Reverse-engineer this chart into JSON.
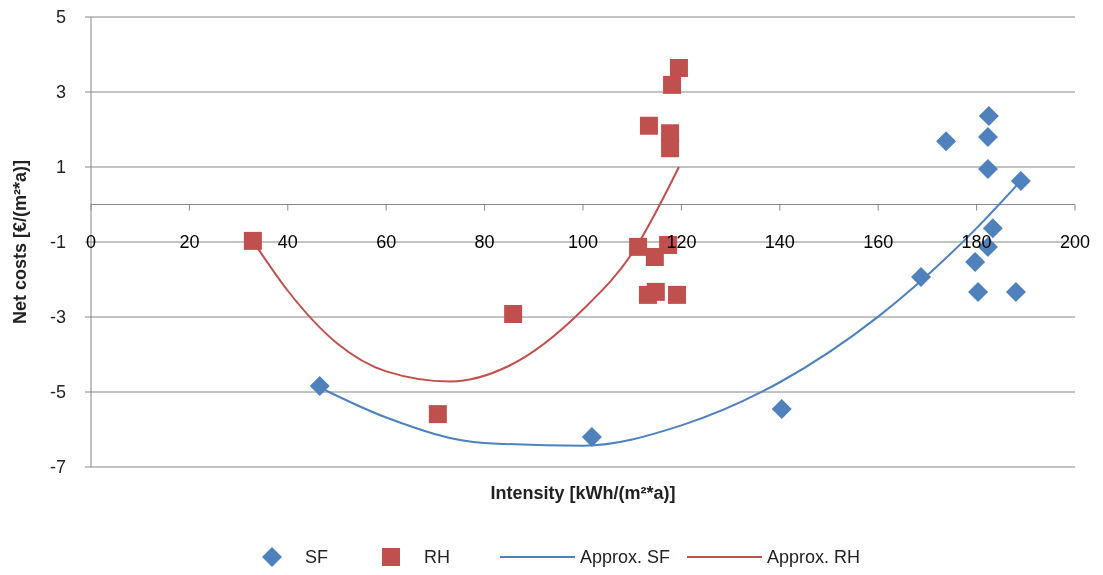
{
  "chart_data": {
    "type": "scatter",
    "xlabel": "Intensity [kWh/(m²*a)]",
    "ylabel": "Net costs [€/(m²*a)]",
    "xlim": [
      0,
      200
    ],
    "xticks": [
      0,
      20,
      40,
      60,
      80,
      100,
      120,
      140,
      160,
      180,
      200
    ],
    "ylim": [
      -7,
      5
    ],
    "yticks": [
      -7,
      -5,
      -3,
      -1,
      1,
      3,
      5
    ],
    "grid": "y",
    "legend": "bottom",
    "series": [
      {
        "name": "SF",
        "marker": "diamond",
        "color": "#4f81bd",
        "x": [
          46.5,
          101.8,
          140.4,
          168.7,
          173.8,
          182.5,
          182.3,
          182.3,
          183.3,
          182.3,
          179.7,
          180.3,
          188,
          189
        ],
        "values": [
          -4.84,
          -6.2,
          -5.45,
          -1.93,
          1.69,
          2.36,
          1.8,
          0.95,
          -0.63,
          -1.13,
          -1.53,
          -2.33,
          -2.33,
          0.63
        ]
      },
      {
        "name": "RH",
        "marker": "square",
        "color": "#c0504d",
        "x": [
          32.9,
          70.5,
          85.8,
          111.2,
          113.4,
          119.5,
          118.1,
          117.7,
          117.7,
          117.3,
          114.6,
          113.2,
          114.8,
          119.1
        ],
        "values": [
          -0.97,
          -5.59,
          -2.92,
          -1.13,
          2.1,
          3.64,
          3.19,
          1.9,
          1.5,
          -1.08,
          -1.4,
          -2.41,
          -2.33,
          -2.41
        ]
      },
      {
        "name": "Approx. SF",
        "type": "line",
        "marker": "none",
        "color": "#4f81bd",
        "x": [
          46.5,
          60,
          80,
          100,
          120,
          140,
          160,
          180,
          189
        ],
        "values": [
          -4.88,
          -5.68,
          -6.36,
          -6.43,
          -5.89,
          -4.74,
          -2.99,
          -0.63,
          0.63
        ]
      },
      {
        "name": "Approx. RH",
        "type": "line",
        "marker": "none",
        "color": "#c0504d",
        "x": [
          32.9,
          40,
          50,
          60,
          73,
          85,
          100,
          110,
          119.5
        ],
        "values": [
          -0.97,
          -2.3,
          -3.7,
          -4.45,
          -4.72,
          -4.3,
          -2.8,
          -1.3,
          1.0
        ]
      }
    ]
  }
}
